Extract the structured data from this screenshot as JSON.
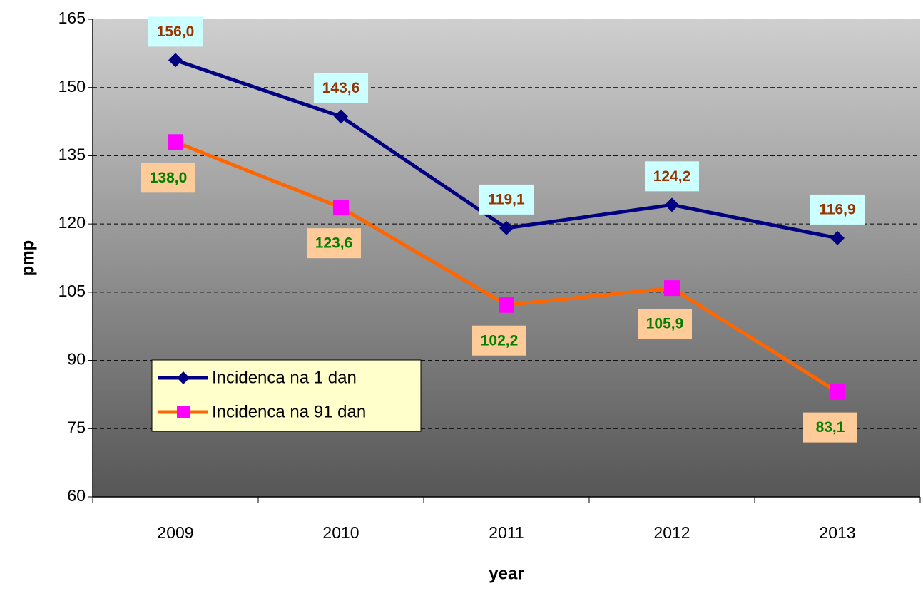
{
  "chart_data": {
    "type": "line",
    "x_label": "year",
    "y_label": "pmp",
    "categories": [
      "2009",
      "2010",
      "2011",
      "2012",
      "2013"
    ],
    "series": [
      {
        "name": "Incidenca na 1 dan",
        "color": "#000080",
        "marker": "diamond",
        "marker_color": "#000080",
        "values": [
          156.0,
          143.6,
          119.1,
          124.2,
          116.9
        ],
        "value_labels": [
          "156,0",
          "143,6",
          "119,1",
          "124,2",
          "116,9"
        ]
      },
      {
        "name": "Incidenca na 91 dan",
        "color": "#ff6600",
        "marker": "square",
        "marker_color": "#ff00ff",
        "values": [
          138.0,
          123.6,
          102.2,
          105.9,
          83.1
        ],
        "value_labels": [
          "138,0",
          "123,6",
          "102,2",
          "105,9",
          "83,1"
        ]
      }
    ],
    "ylim": [
      60,
      165
    ],
    "yticks": [
      60,
      75,
      90,
      105,
      120,
      135,
      150,
      165
    ],
    "grid": true
  }
}
